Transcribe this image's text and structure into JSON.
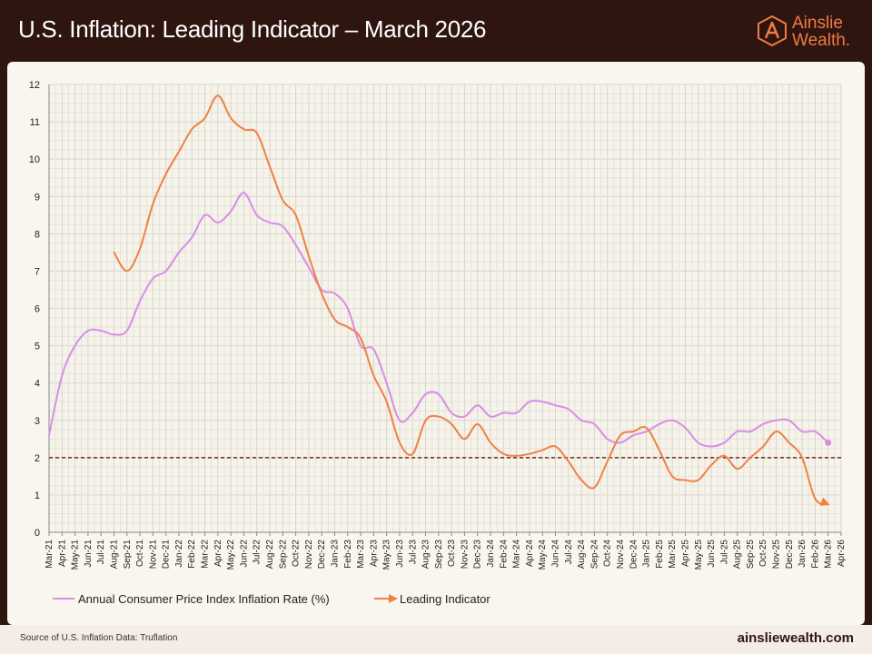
{
  "header": {
    "title": "U.S. Inflation: Leading Indicator – March 2026",
    "logo_line1": "Ainslie",
    "logo_line2": "Wealth."
  },
  "footer": {
    "source": "Source of U.S. Inflation Data: Truflation",
    "site": "ainsliewealth.com"
  },
  "colors": {
    "background": "#2e1510",
    "panel": "#f8f6ef",
    "cpi_series": "#d98de8",
    "leading_series": "#f08145",
    "reference_line": "#7a3b2a",
    "brand": "#f07a45"
  },
  "chart_data": {
    "type": "line",
    "title": "",
    "xlabel": "",
    "ylabel": "",
    "ylim": [
      0,
      12
    ],
    "yticks": [
      0,
      1,
      2,
      3,
      4,
      5,
      6,
      7,
      8,
      9,
      10,
      11,
      12
    ],
    "grid": true,
    "legend_position": "bottom",
    "categories": [
      "Mar-21",
      "Apr-21",
      "May-21",
      "Jun-21",
      "Jul-21",
      "Aug-21",
      "Sep-21",
      "Oct-21",
      "Nov-21",
      "Dec-21",
      "Jan-22",
      "Feb-22",
      "Mar-22",
      "Apr-22",
      "May-22",
      "Jun-22",
      "Jul-22",
      "Aug-22",
      "Sep-22",
      "Oct-22",
      "Nov-22",
      "Dec-22",
      "Jan-23",
      "Feb-23",
      "Mar-23",
      "Apr-23",
      "May-23",
      "Jun-23",
      "Jul-23",
      "Aug-23",
      "Sep-23",
      "Oct-23",
      "Nov-23",
      "Dec-23",
      "Jan-24",
      "Feb-24",
      "Mar-24",
      "Apr-24",
      "May-24",
      "Jun-24",
      "Jul-24",
      "Aug-24",
      "Sep-24",
      "Oct-24",
      "Nov-24",
      "Dec-24",
      "Jan-25",
      "Feb-25",
      "Mar-25",
      "Apr-25",
      "May-25",
      "Jun-25",
      "Jul-25",
      "Aug-25",
      "Sep-25",
      "Oct-25",
      "Nov-25",
      "Dec-25",
      "Jan-26",
      "Feb-26",
      "Mar-26",
      "Apr-26"
    ],
    "reference_line": {
      "y": 2,
      "style": "dashed"
    },
    "series": [
      {
        "name": "Annual Consumer Price Index Inflation Rate (%)",
        "color": "#d98de8",
        "end_marker": "dot",
        "points": [
          [
            "Mar-21",
            2.6
          ],
          [
            "Apr-21",
            4.2
          ],
          [
            "May-21",
            5.0
          ],
          [
            "Jun-21",
            5.4
          ],
          [
            "Jul-21",
            5.4
          ],
          [
            "Aug-21",
            5.3
          ],
          [
            "Sep-21",
            5.4
          ],
          [
            "Oct-21",
            6.2
          ],
          [
            "Nov-21",
            6.8
          ],
          [
            "Dec-21",
            7.0
          ],
          [
            "Jan-22",
            7.5
          ],
          [
            "Feb-22",
            7.9
          ],
          [
            "Mar-22",
            8.5
          ],
          [
            "Apr-22",
            8.3
          ],
          [
            "May-22",
            8.6
          ],
          [
            "Jun-22",
            9.1
          ],
          [
            "Jul-22",
            8.5
          ],
          [
            "Aug-22",
            8.3
          ],
          [
            "Sep-22",
            8.2
          ],
          [
            "Oct-22",
            7.7
          ],
          [
            "Nov-22",
            7.1
          ],
          [
            "Dec-22",
            6.5
          ],
          [
            "Jan-23",
            6.4
          ],
          [
            "Feb-23",
            6.0
          ],
          [
            "Mar-23",
            5.0
          ],
          [
            "Apr-23",
            4.9
          ],
          [
            "May-23",
            4.0
          ],
          [
            "Jun-23",
            3.0
          ],
          [
            "Jul-23",
            3.2
          ],
          [
            "Aug-23",
            3.7
          ],
          [
            "Sep-23",
            3.7
          ],
          [
            "Oct-23",
            3.2
          ],
          [
            "Nov-23",
            3.1
          ],
          [
            "Dec-23",
            3.4
          ],
          [
            "Jan-24",
            3.1
          ],
          [
            "Feb-24",
            3.2
          ],
          [
            "Mar-24",
            3.2
          ],
          [
            "Apr-24",
            3.5
          ],
          [
            "May-24",
            3.5
          ],
          [
            "Jun-24",
            3.4
          ],
          [
            "Jul-24",
            3.3
          ],
          [
            "Aug-24",
            3.0
          ],
          [
            "Sep-24",
            2.9
          ],
          [
            "Oct-24",
            2.5
          ],
          [
            "Nov-24",
            2.4
          ],
          [
            "Dec-24",
            2.6
          ],
          [
            "Jan-25",
            2.7
          ],
          [
            "Feb-25",
            2.9
          ],
          [
            "Mar-25",
            3.0
          ],
          [
            "Apr-25",
            2.8
          ],
          [
            "May-25",
            2.4
          ],
          [
            "Jun-25",
            2.3
          ],
          [
            "Jul-25",
            2.4
          ],
          [
            "Aug-25",
            2.7
          ],
          [
            "Sep-25",
            2.7
          ],
          [
            "Oct-25",
            2.9
          ],
          [
            "Nov-25",
            3.0
          ],
          [
            "Dec-25",
            3.0
          ],
          [
            "Jan-26",
            2.7
          ],
          [
            "Feb-26",
            2.7
          ],
          [
            "Mar-26",
            2.4
          ]
        ]
      },
      {
        "name": "Leading Indicator",
        "color": "#f08145",
        "end_marker": "arrow",
        "points": [
          [
            "Aug-21",
            7.5
          ],
          [
            "Sep-21",
            7.0
          ],
          [
            "Oct-21",
            7.6
          ],
          [
            "Nov-21",
            8.8
          ],
          [
            "Dec-21",
            9.6
          ],
          [
            "Jan-22",
            10.2
          ],
          [
            "Feb-22",
            10.8
          ],
          [
            "Mar-22",
            11.1
          ],
          [
            "Apr-22",
            11.7
          ],
          [
            "May-22",
            11.1
          ],
          [
            "Jun-22",
            10.8
          ],
          [
            "Jul-22",
            10.7
          ],
          [
            "Aug-22",
            9.8
          ],
          [
            "Sep-22",
            8.9
          ],
          [
            "Oct-22",
            8.5
          ],
          [
            "Nov-22",
            7.4
          ],
          [
            "Dec-22",
            6.4
          ],
          [
            "Jan-23",
            5.7
          ],
          [
            "Feb-23",
            5.5
          ],
          [
            "Mar-23",
            5.2
          ],
          [
            "Apr-23",
            4.2
          ],
          [
            "May-23",
            3.5
          ],
          [
            "Jun-23",
            2.4
          ],
          [
            "Jul-23",
            2.1
          ],
          [
            "Aug-23",
            3.0
          ],
          [
            "Sep-23",
            3.1
          ],
          [
            "Oct-23",
            2.9
          ],
          [
            "Nov-23",
            2.5
          ],
          [
            "Dec-23",
            2.9
          ],
          [
            "Jan-24",
            2.4
          ],
          [
            "Feb-24",
            2.1
          ],
          [
            "Mar-24",
            2.05
          ],
          [
            "Apr-24",
            2.1
          ],
          [
            "May-24",
            2.2
          ],
          [
            "Jun-24",
            2.3
          ],
          [
            "Jul-24",
            1.9
          ],
          [
            "Aug-24",
            1.4
          ],
          [
            "Sep-24",
            1.2
          ],
          [
            "Oct-24",
            1.9
          ],
          [
            "Nov-24",
            2.6
          ],
          [
            "Dec-24",
            2.7
          ],
          [
            "Jan-25",
            2.8
          ],
          [
            "Feb-25",
            2.2
          ],
          [
            "Mar-25",
            1.5
          ],
          [
            "Apr-25",
            1.4
          ],
          [
            "May-25",
            1.4
          ],
          [
            "Jun-25",
            1.8
          ],
          [
            "Jul-25",
            2.05
          ],
          [
            "Aug-25",
            1.7
          ],
          [
            "Sep-25",
            2.0
          ],
          [
            "Oct-25",
            2.3
          ],
          [
            "Nov-25",
            2.7
          ],
          [
            "Dec-25",
            2.4
          ],
          [
            "Jan-26",
            2.0
          ],
          [
            "Feb-26",
            0.9
          ],
          [
            "Mar-26",
            0.75
          ]
        ]
      }
    ]
  }
}
